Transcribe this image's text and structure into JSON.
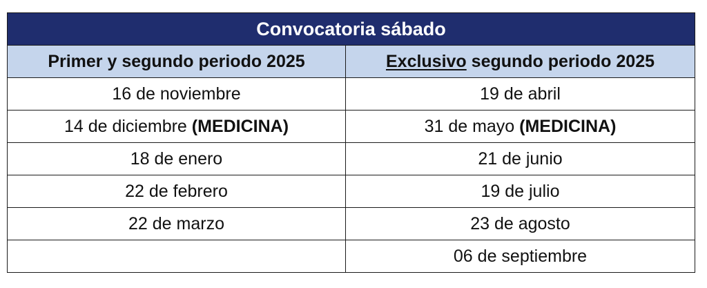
{
  "title": "Convocatoria sábado",
  "headers": {
    "col1": "Primer y segundo periodo 2025",
    "col2_underlined": "Exclusivo",
    "col2_rest": " segundo periodo 2025"
  },
  "rows": [
    {
      "c1": "16 de noviembre",
      "c1_bold": "",
      "c2": "19 de abril",
      "c2_bold": ""
    },
    {
      "c1": "14 de diciembre ",
      "c1_bold": "(MEDICINA)",
      "c2": "31 de mayo ",
      "c2_bold": "(MEDICINA)"
    },
    {
      "c1": "18 de enero",
      "c1_bold": "",
      "c2": "21 de junio",
      "c2_bold": ""
    },
    {
      "c1": "22 de febrero",
      "c1_bold": "",
      "c2": "19 de julio",
      "c2_bold": ""
    },
    {
      "c1": "22 de marzo",
      "c1_bold": "",
      "c2": "23 de agosto",
      "c2_bold": ""
    },
    {
      "c1": "",
      "c1_bold": "",
      "c2": "06 de septiembre",
      "c2_bold": ""
    }
  ],
  "colors": {
    "title_bg": "#1f2d6e",
    "header_bg": "#c5d5ec"
  }
}
